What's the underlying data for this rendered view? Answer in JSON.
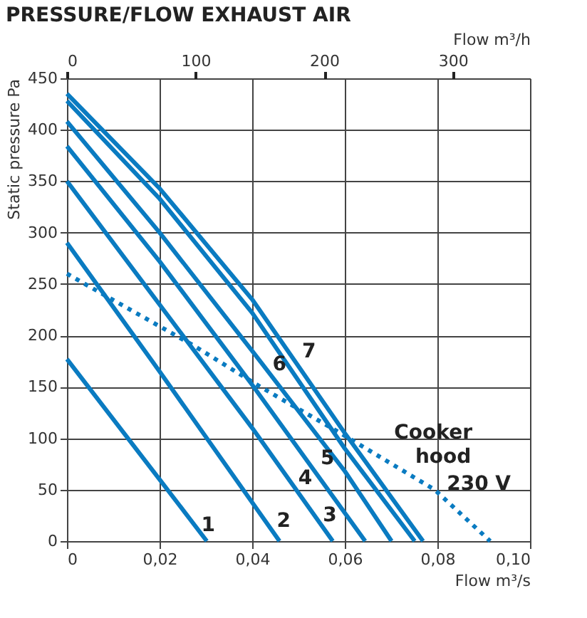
{
  "chart_data": {
    "type": "line",
    "title": "PRESSURE/FLOW EXHAUST AIR",
    "xlabel": "Flow m³/s",
    "ylabel": "Static pressure Pa",
    "x2label": "Flow m³/h",
    "xlim": [
      0,
      0.1
    ],
    "xticks": [
      {
        "value": 0,
        "label": "0"
      },
      {
        "value": 0.02,
        "label": "0,02"
      },
      {
        "value": 0.04,
        "label": "0,04"
      },
      {
        "value": 0.06,
        "label": "0,06"
      },
      {
        "value": 0.08,
        "label": "0,08"
      },
      {
        "value": 0.1,
        "label": "0,10"
      }
    ],
    "ylim": [
      0,
      450
    ],
    "yticks": [
      0,
      50,
      100,
      150,
      200,
      250,
      300,
      350,
      400,
      450
    ],
    "x2lim": [
      0,
      360
    ],
    "x2ticks": [
      0,
      100,
      200,
      300
    ],
    "grid": true,
    "marker": "none",
    "series": [
      {
        "name": "1",
        "color": "#0a7bc1",
        "line_style": "solid",
        "x": [
          0,
          0.02,
          0.0302
        ],
        "values": [
          177,
          60,
          0
        ]
      },
      {
        "name": "2",
        "color": "#0a7bc1",
        "line_style": "solid",
        "x": [
          0,
          0.02,
          0.0459
        ],
        "values": [
          290,
          165,
          0
        ]
      },
      {
        "name": "3",
        "color": "#0a7bc1",
        "line_style": "solid",
        "x": [
          0,
          0.02,
          0.04,
          0.0574
        ],
        "values": [
          350,
          230,
          110,
          0
        ]
      },
      {
        "name": "4",
        "color": "#0a7bc1",
        "line_style": "solid",
        "x": [
          0,
          0.02,
          0.04,
          0.0644
        ],
        "values": [
          384,
          272,
          152,
          0
        ]
      },
      {
        "name": "5",
        "color": "#0a7bc1",
        "line_style": "solid",
        "x": [
          0,
          0.02,
          0.04,
          0.06,
          0.0701
        ],
        "values": [
          408,
          300,
          185,
          68,
          0
        ]
      },
      {
        "name": "6",
        "color": "#0a7bc1",
        "line_style": "solid",
        "x": [
          0,
          0.02,
          0.04,
          0.06,
          0.0751
        ],
        "values": [
          428,
          333,
          222,
          90,
          0
        ]
      },
      {
        "name": "7",
        "color": "#0a7bc1",
        "line_style": "solid",
        "x": [
          0,
          0.02,
          0.04,
          0.06,
          0.0769
        ],
        "values": [
          435,
          343,
          235,
          105,
          0
        ]
      },
      {
        "name": "Cooker hood 230 V",
        "color": "#0a7bc1",
        "line_style": "dotted",
        "x": [
          0,
          0.0074,
          0.0274,
          0.0414,
          0.0594,
          0.0794,
          0.0914
        ],
        "values": [
          260,
          241,
          190,
          151,
          104,
          50,
          0
        ]
      }
    ]
  }
}
